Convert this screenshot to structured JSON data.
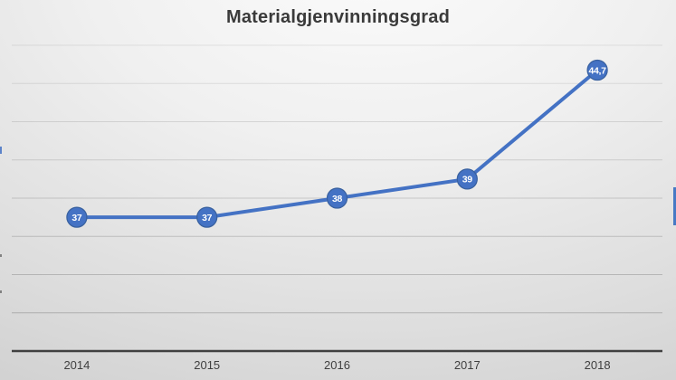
{
  "chart_data": {
    "type": "line",
    "title": "Materialgjenvinningsgrad",
    "categories": [
      "2014",
      "2015",
      "2016",
      "2017",
      "2018"
    ],
    "series": [
      {
        "values": [
          37,
          37,
          38,
          39,
          44.7
        ],
        "point_labels": [
          "37",
          "37",
          "38",
          "39",
          "44,7"
        ],
        "color": "#4472c4"
      }
    ],
    "xlabel": "",
    "ylabel": "",
    "ylim": [
      30,
      46.6
    ],
    "gridline_step": 2,
    "grid": "horizontal-only",
    "legend": "none",
    "y_axis_tick_labels_visible": false,
    "data_label_style": "white bold numbers inside circular markers"
  },
  "colors": {
    "accent": "#4472c4",
    "marker_border": "#39619f",
    "marker_label_text": "#ffffff",
    "title_text": "#3a3a3a",
    "axis_line": "#404040",
    "tick_label_text": "#3f3f3f",
    "gridline": "#4a4a4a"
  }
}
